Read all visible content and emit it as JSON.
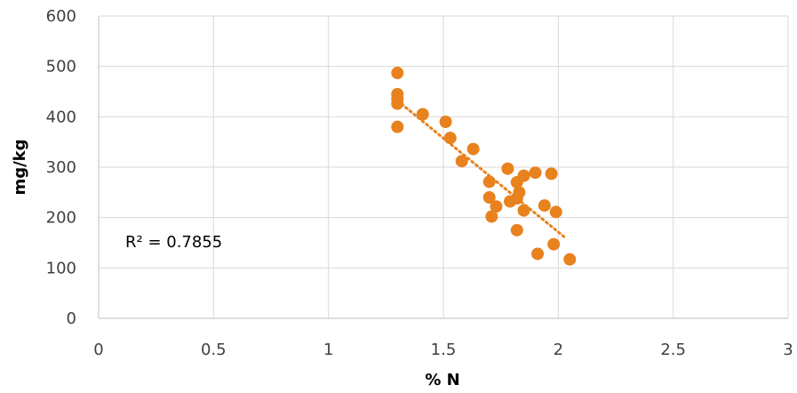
{
  "chart_data": {
    "type": "scatter",
    "title": "",
    "xlabel": "% N",
    "ylabel": "mg/kg",
    "xlim": [
      0,
      3
    ],
    "ylim": [
      0,
      600
    ],
    "x_ticks": [
      "0",
      "0.5",
      "1",
      "1.5",
      "2",
      "2.5",
      "3"
    ],
    "y_ticks": [
      "0",
      "100",
      "200",
      "300",
      "400",
      "500",
      "600"
    ],
    "grid": true,
    "marker_color": "#E8821E",
    "trendline": {
      "type": "linear",
      "style": "dotted",
      "color": "#E8821E",
      "x": [
        1.3,
        2.03
      ],
      "y": [
        432,
        160
      ]
    },
    "annotation": "R² = 0.7855",
    "points": [
      [
        1.3,
        487
      ],
      [
        1.3,
        445
      ],
      [
        1.3,
        435
      ],
      [
        1.3,
        426
      ],
      [
        1.3,
        380
      ],
      [
        1.41,
        405
      ],
      [
        1.51,
        390
      ],
      [
        1.53,
        358
      ],
      [
        1.58,
        312
      ],
      [
        1.63,
        336
      ],
      [
        1.7,
        271
      ],
      [
        1.7,
        240
      ],
      [
        1.71,
        202
      ],
      [
        1.73,
        222
      ],
      [
        1.78,
        297
      ],
      [
        1.79,
        232
      ],
      [
        1.82,
        270
      ],
      [
        1.82,
        238
      ],
      [
        1.83,
        250
      ],
      [
        1.82,
        175
      ],
      [
        1.85,
        283
      ],
      [
        1.85,
        214
      ],
      [
        1.9,
        289
      ],
      [
        1.91,
        128
      ],
      [
        1.94,
        224
      ],
      [
        1.97,
        287
      ],
      [
        1.98,
        147
      ],
      [
        1.99,
        211
      ],
      [
        2.05,
        117
      ]
    ]
  }
}
